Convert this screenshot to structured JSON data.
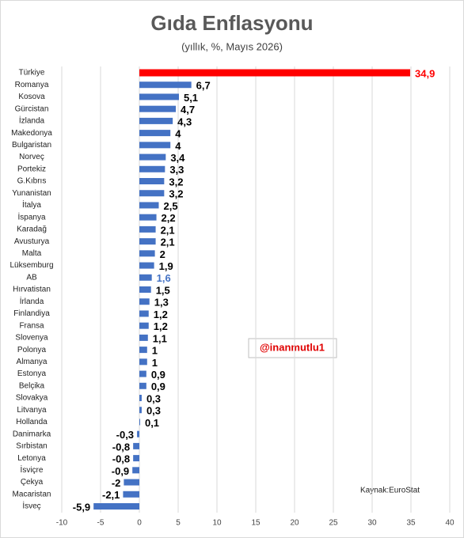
{
  "chart_data": {
    "type": "hbar",
    "title": "Gıda Enflasyonu",
    "subtitle": "(yıllık, %, Mayıs 2026)",
    "categories": [
      "Türkiye",
      "Romanya",
      "Kosova",
      "Gürcistan",
      "İzlanda",
      "Makedonya",
      "Bulgaristan",
      "Norveç",
      "Portekiz",
      "G.Kıbrıs",
      "Yunanistan",
      "İtalya",
      "İspanya",
      "Karadağ",
      "Avusturya",
      "Malta",
      "Lüksemburg",
      "AB",
      "Hırvatistan",
      "İrlanda",
      "Finlandiya",
      "Fransa",
      "Slovenya",
      "Polonya",
      "Almanya",
      "Estonya",
      "Belçika",
      "Slovakya",
      "Litvanya",
      "Hollanda",
      "Danimarka",
      "Sırbistan",
      "Letonya",
      "İsviçre",
      "Çekya",
      "Macaristan",
      "İsveç"
    ],
    "values": [
      34.9,
      6.7,
      5.1,
      4.7,
      4.3,
      4,
      4,
      3.4,
      3.3,
      3.2,
      3.2,
      2.5,
      2.2,
      2.1,
      2.1,
      2,
      1.9,
      1.6,
      1.5,
      1.3,
      1.2,
      1.2,
      1.1,
      1,
      1,
      0.9,
      0.9,
      0.3,
      0.3,
      0.1,
      -0.3,
      -0.8,
      -0.8,
      -0.9,
      -2,
      -2.1,
      -5.9
    ],
    "value_labels": [
      "34,9",
      "6,7",
      "5,1",
      "4,7",
      "4,3",
      "4",
      "4",
      "3,4",
      "3,3",
      "3,2",
      "3,2",
      "2,5",
      "2,2",
      "2,1",
      "2,1",
      "2",
      "1,9",
      "1,6",
      "1,5",
      "1,3",
      "1,2",
      "1,2",
      "1,1",
      "1",
      "1",
      "0,9",
      "0,9",
      "0,3",
      "0,3",
      "0,1",
      "-0,3",
      "-0,8",
      "-0,8",
      "-0,9",
      "-2",
      "-2,1",
      "-5,9"
    ],
    "color": "#4472c4",
    "highlight_color": "#ff0000",
    "highlight_index": 0,
    "label_highlight_index": 17,
    "label_highlight_color": "#4472c4",
    "xlim": [
      -10,
      40
    ],
    "xticks": [
      -10,
      -5,
      0,
      5,
      10,
      15,
      20,
      25,
      30,
      35,
      40
    ],
    "grid": true,
    "annotations": [
      "@inanmutlu1",
      "Kaynak:EuroStat"
    ]
  }
}
